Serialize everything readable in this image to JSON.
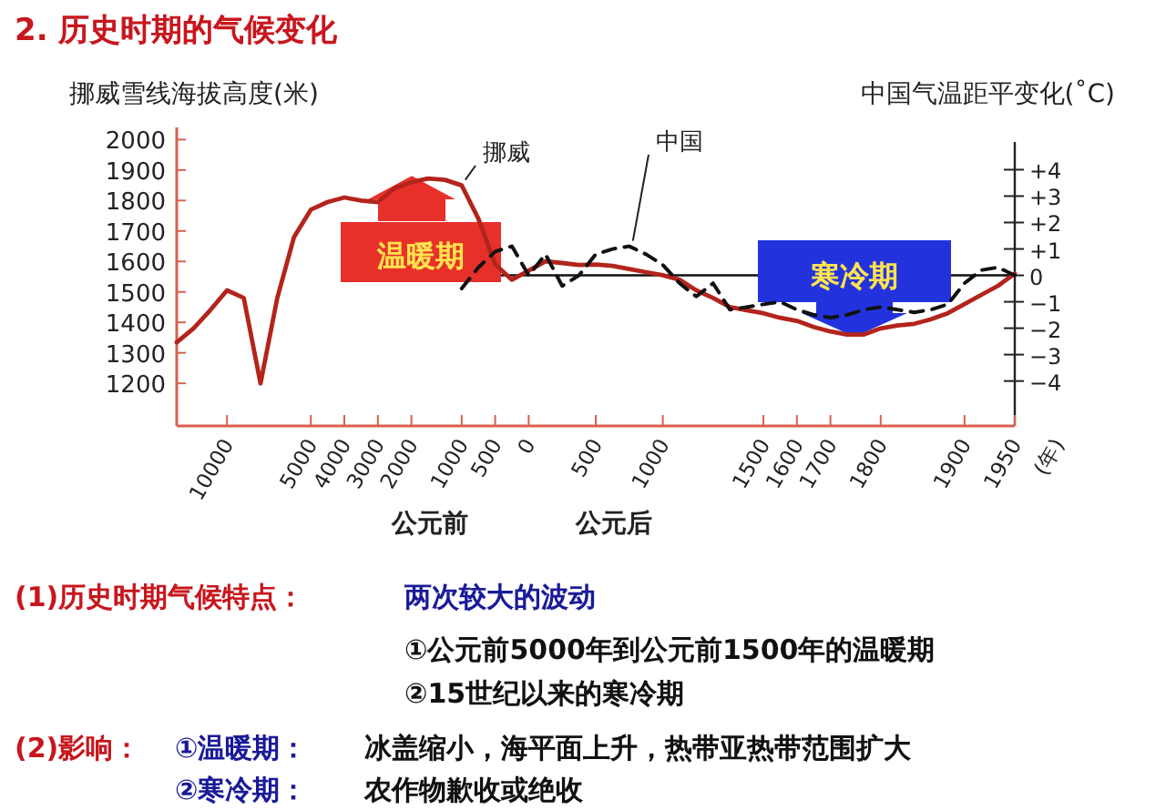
{
  "chart_data": {
    "type": "line",
    "title": "2. 历史时期的气候变化",
    "ylabel": "挪威雪线海拔高度(米)",
    "y2label": "中国气温距平变化(˚C)",
    "categories": [
      null,
      null,
      null,
      "10000",
      null,
      null,
      null,
      null,
      "5000",
      null,
      "4000",
      null,
      "3000",
      null,
      "2000",
      null,
      null,
      "1000",
      null,
      "500",
      null,
      "0",
      null,
      null,
      null,
      "500",
      null,
      null,
      null,
      "1000",
      null,
      null,
      null,
      null,
      null,
      "1500",
      null,
      "1600",
      null,
      "1700",
      null,
      null,
      "1800",
      null,
      null,
      null,
      null,
      "1900",
      null,
      null,
      "1950"
    ],
    "series": [
      {
        "name": "挪威",
        "color": "#b3241c",
        "values": [
          1334,
          1380,
          1440,
          1505,
          1480,
          1200,
          1480,
          1680,
          1770,
          1795,
          1810,
          1800,
          1795,
          1840,
          1860,
          1872,
          1868,
          1850,
          1740,
          1590,
          1540,
          1570,
          1600,
          1595,
          1588,
          1590,
          1585,
          1575,
          1565,
          1555,
          1540,
          1505,
          1480,
          1450,
          1440,
          1430,
          1415,
          1405,
          1385,
          1370,
          1360,
          1360,
          1380,
          1390,
          1395,
          1410,
          1430,
          1460,
          1490,
          1520,
          1560
        ]
      },
      {
        "name": "中国",
        "color": "#111111",
        "axis": "y2",
        "line_style": "dashed",
        "values": [
          null,
          null,
          null,
          null,
          null,
          null,
          null,
          null,
          null,
          null,
          null,
          null,
          null,
          null,
          null,
          null,
          null,
          -0.5,
          0.3,
          0.9,
          1.1,
          0.0,
          0.8,
          -0.4,
          0.0,
          0.8,
          1.0,
          1.1,
          0.8,
          0.4,
          -0.3,
          -0.8,
          -0.3,
          -1.3,
          -1.2,
          -1.1,
          -1.0,
          -1.3,
          -1.5,
          -1.6,
          -1.5,
          -1.3,
          -1.2,
          -1.3,
          -1.4,
          -1.3,
          -1.1,
          -0.3,
          0.2,
          0.3,
          0.0
        ]
      }
    ],
    "ylim": [
      1060,
      2040
    ],
    "yticks": [
      1200,
      1300,
      1400,
      1500,
      1600,
      1700,
      1800,
      1900,
      2000
    ],
    "y2lim": [
      -5.7,
      5.6
    ],
    "y2ticks": [
      {
        "value": 4,
        "label": "+4"
      },
      {
        "value": 3,
        "label": "+3"
      },
      {
        "value": 2,
        "label": "+2"
      },
      {
        "value": 1,
        "label": "+1"
      },
      0,
      {
        "value": -1,
        "label": "−1"
      },
      {
        "value": -2,
        "label": "−2"
      },
      {
        "value": -3,
        "label": "−3"
      },
      {
        "value": -4,
        "label": "−4"
      }
    ],
    "ref_lines": [
      {
        "axis": "y2",
        "value": 0,
        "color": "#111111"
      }
    ],
    "grid": false,
    "annotations": [
      "温暖期",
      "寒冷期",
      "公元前",
      "公元后",
      "(年)",
      "(1)历史时期气候特点：",
      "两次较大的波动",
      "①公元前5000年到公元前1500年的温暖期",
      "②15世纪以来的寒冷期",
      "(2)影响：",
      "①温暖期：",
      "冰盖缩小，海平面上升，热带亚热带范围扩大",
      "②寒冷期：",
      "农作物歉收或绝收"
    ]
  }
}
